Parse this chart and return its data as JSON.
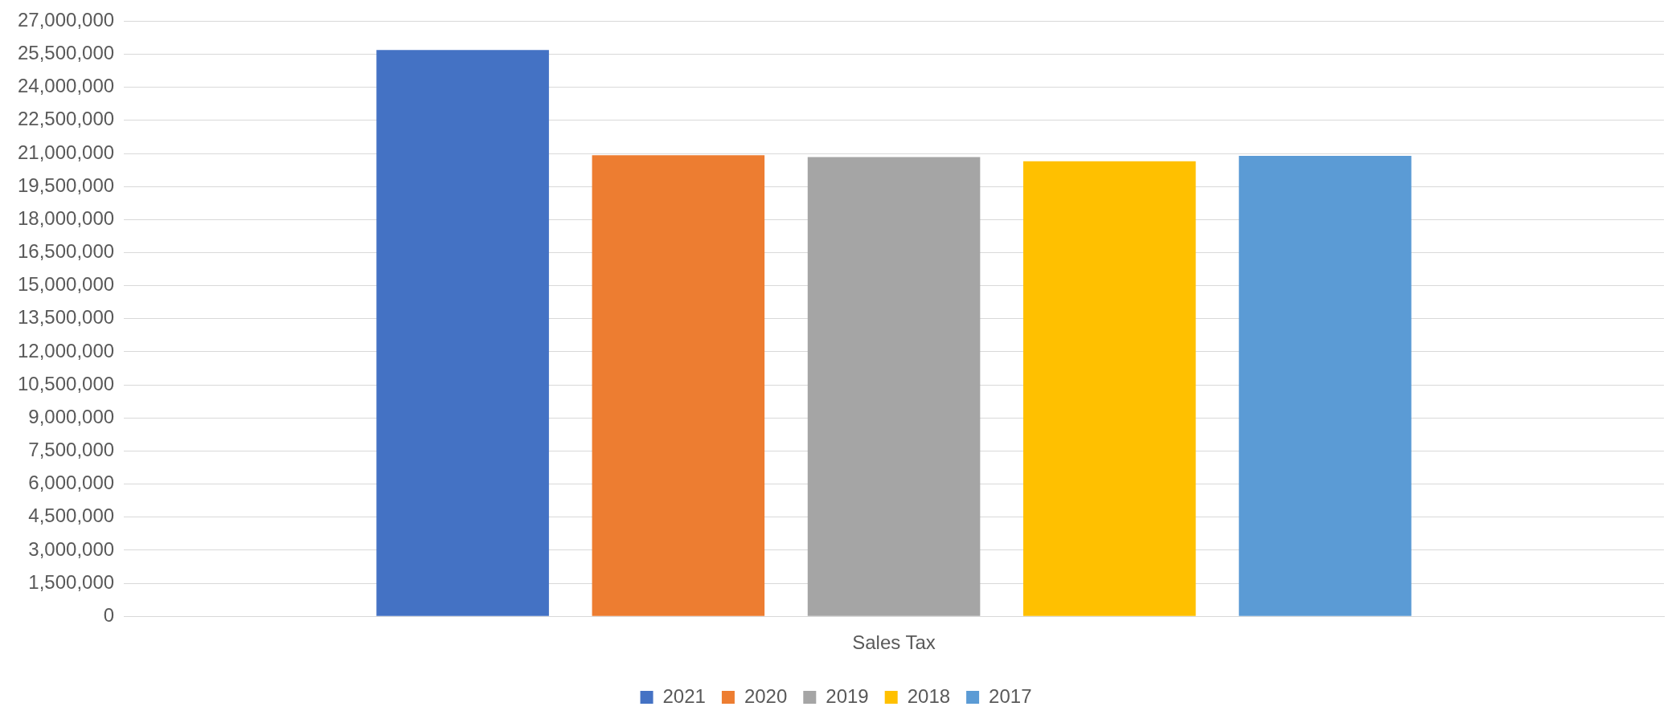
{
  "chart_data": {
    "type": "bar",
    "categories": [
      "Sales Tax"
    ],
    "series": [
      {
        "name": "2021",
        "color": "#4472c4",
        "values": [
          25690000
        ]
      },
      {
        "name": "2020",
        "color": "#ed7d31",
        "values": [
          20920000
        ]
      },
      {
        "name": "2019",
        "color": "#a5a5a5",
        "values": [
          20840000
        ]
      },
      {
        "name": "2018",
        "color": "#ffc000",
        "values": [
          20650000
        ]
      },
      {
        "name": "2017",
        "color": "#5b9bd5",
        "values": [
          20890000
        ]
      }
    ],
    "ylim": [
      0,
      27000000
    ],
    "yticks": [
      0,
      {
        "value": 1500000,
        "label": "1,500,000"
      },
      {
        "value": 3000000,
        "label": "3,000,000"
      },
      {
        "value": 4500000,
        "label": "4,500,000"
      },
      {
        "value": 6000000,
        "label": "6,000,000"
      },
      {
        "value": 7500000,
        "label": "7,500,000"
      },
      {
        "value": 9000000,
        "label": "9,000,000"
      },
      {
        "value": 10500000,
        "label": "10,500,000"
      },
      {
        "value": 12000000,
        "label": "12,000,000"
      },
      {
        "value": 13500000,
        "label": "13,500,000"
      },
      {
        "value": 15000000,
        "label": "15,000,000"
      },
      {
        "value": 16500000,
        "label": "16,500,000"
      },
      {
        "value": 18000000,
        "label": "18,000,000"
      },
      {
        "value": 19500000,
        "label": "19,500,000"
      },
      {
        "value": 21000000,
        "label": "21,000,000"
      },
      {
        "value": 22500000,
        "label": "22,500,000"
      },
      {
        "value": 24000000,
        "label": "24,000,000"
      },
      {
        "value": 25500000,
        "label": "25,500,000"
      },
      {
        "value": 27000000,
        "label": "27,000,000"
      }
    ],
    "grid": "y",
    "legend": "bottom"
  }
}
